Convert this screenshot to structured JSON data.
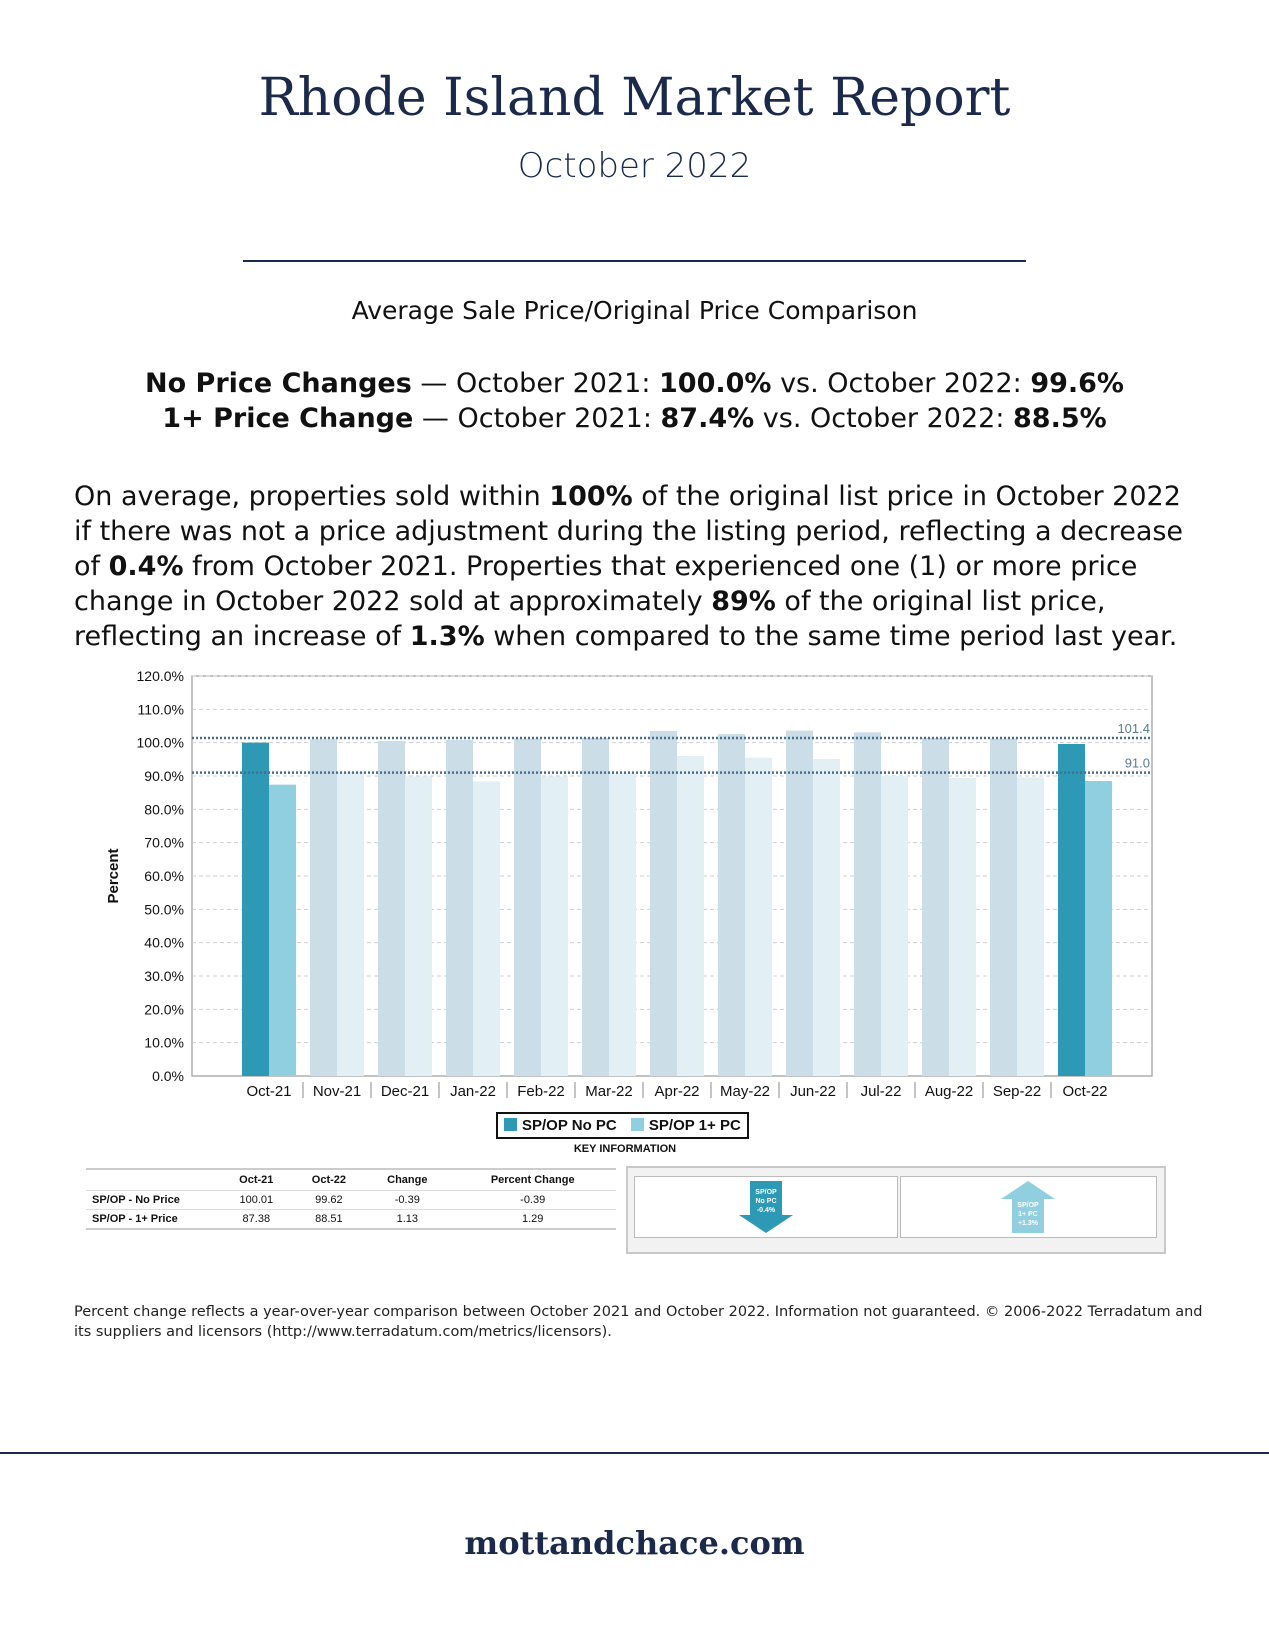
{
  "header": {
    "title": "Rhode Island Market Report",
    "subtitle": "October 2022"
  },
  "section_heading": "Average Sale Price/Original Price Comparison",
  "comparisons": [
    {
      "label": "No Price Changes",
      "sep": " — October 2021: ",
      "v2021": "100.0%",
      "vs": " vs. October 2022: ",
      "v2022": "99.6%"
    },
    {
      "label": "1+ Price Change",
      "sep": " — October 2021: ",
      "v2021": "87.4%",
      "vs": " vs. October 2022: ",
      "v2022": "88.5%"
    }
  ],
  "paragraph": {
    "p1": "On average, properties sold within ",
    "b1": "100%",
    "p2": " of the original list price in October 2022 if there was not a price adjustment during the listing period, reflecting a decrease of ",
    "b2": "0.4%",
    "p3": " from October 2021. Properties that experienced one (1) or more price change in October 2022 sold at approximately ",
    "b3": "89%",
    "p4": " of the original list price, reflecting an increase of ",
    "b4": "1.3%",
    "p5": " when compared to the same time period last year."
  },
  "chart_data": {
    "type": "bar",
    "ylabel": "Percent",
    "xlabel": "",
    "ylim": [
      0,
      120
    ],
    "ytick_labels": [
      "0.0%",
      "10.0%",
      "20.0%",
      "30.0%",
      "40.0%",
      "50.0%",
      "60.0%",
      "70.0%",
      "80.0%",
      "90.0%",
      "100.0%",
      "110.0%",
      "120.0%"
    ],
    "grid": true,
    "categories": [
      "Oct-21",
      "Nov-21",
      "Dec-21",
      "Jan-22",
      "Feb-22",
      "Mar-22",
      "Apr-22",
      "May-22",
      "Jun-22",
      "Jul-22",
      "Aug-22",
      "Sep-22",
      "Oct-22"
    ],
    "highlighted_categories": [
      "Oct-21",
      "Oct-22"
    ],
    "series": [
      {
        "name": "SP/OP No PC",
        "color": "#2e99b5",
        "muted_color": "#cbdde6",
        "values": [
          100.0,
          101.0,
          100.5,
          100.8,
          101.2,
          101.4,
          103.5,
          102.6,
          103.6,
          103.1,
          101.4,
          101.2,
          99.6
        ]
      },
      {
        "name": "SP/OP 1+ PC",
        "color": "#8fcfe0",
        "muted_color": "#e2f0f6",
        "values": [
          87.4,
          91.2,
          89.9,
          88.4,
          89.9,
          90.8,
          96.0,
          95.5,
          95.1,
          90.0,
          89.4,
          89.6,
          88.5
        ]
      }
    ],
    "reference_lines": [
      {
        "value": 101.4,
        "label": "101.4"
      },
      {
        "value": 91.0,
        "label": "91.0"
      }
    ],
    "legend_position": "bottom-center"
  },
  "key_info": {
    "title": "KEY INFORMATION",
    "columns": [
      "",
      "Oct-21",
      "Oct-22",
      "Change",
      "Percent Change"
    ],
    "rows": [
      [
        "SP/OP - No Price",
        "100.01",
        "99.62",
        "-0.39",
        "-0.39"
      ],
      [
        "SP/OP - 1+ Price",
        "87.38",
        "88.51",
        "1.13",
        "1.29"
      ]
    ],
    "indicators": [
      {
        "lines": [
          "SP/OP",
          "No PC",
          "-0.4%"
        ],
        "direction": "down",
        "color": "#2e99b5"
      },
      {
        "lines": [
          "SP/OP",
          "1+ PC",
          "+1.3%"
        ],
        "direction": "up",
        "color": "#8fcfe0"
      }
    ]
  },
  "footnote": "Percent change reflects a year-over-year comparison between October 2021 and October 2022. Information not guaranteed. © 2006-2022 Terradatum and its suppliers and licensors (http://www.terradatum.com/metrics/licensors).",
  "footer": {
    "site": "mottandchace.com"
  }
}
